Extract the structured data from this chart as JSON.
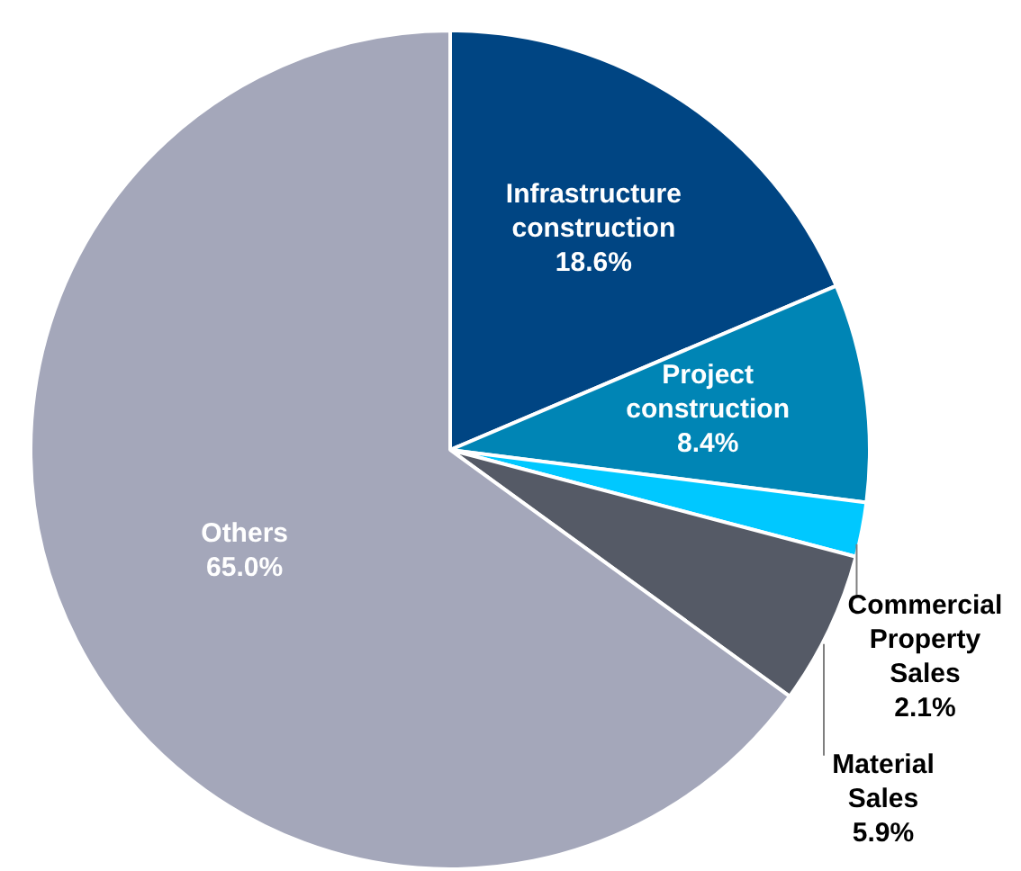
{
  "chart_data": {
    "type": "pie",
    "categories": [
      "Infrastructure construction",
      "Project construction",
      "Commercial Property Sales",
      "Material Sales",
      "Others"
    ],
    "values": [
      18.6,
      8.4,
      2.1,
      5.9,
      65.0
    ],
    "value_labels": [
      "18.6%",
      "8.4%",
      "2.1%",
      "5.9%",
      "65.0%"
    ],
    "colors": [
      "#004583",
      "#0085b5",
      "#00c8ff",
      "#555a66",
      "#a4a7ba"
    ],
    "legend": false
  }
}
